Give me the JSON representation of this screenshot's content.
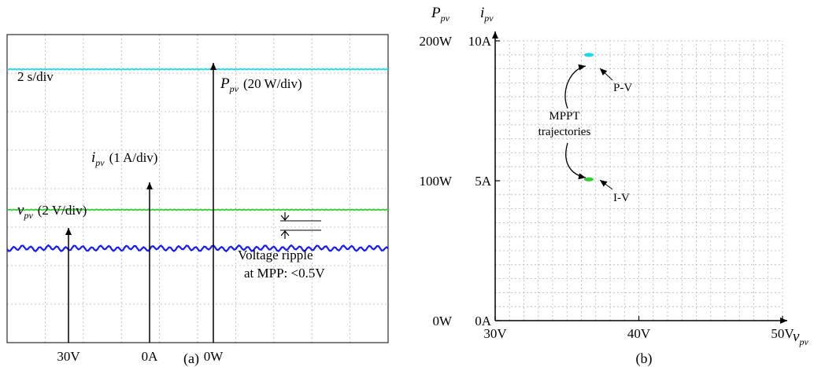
{
  "chart_data": [
    {
      "panel": "(a)",
      "type": "line",
      "time_scale": "2 s/div",
      "series": [
        {
          "name": "P_pv",
          "label_main": "P",
          "label_sub": "pv",
          "label_scale": "(20 W/div)",
          "color": "#1ed8e6",
          "level_div": 7.1,
          "reference": "0W"
        },
        {
          "name": "i_pv",
          "label_main": "i",
          "label_sub": "pv",
          "label_scale": "(1 A/div)",
          "color": "#33cc33",
          "level_div": 3.45,
          "reference": "0A"
        },
        {
          "name": "v_pv",
          "label_main": "v",
          "label_sub": "pv",
          "label_scale": "(2 V/div)",
          "color": "#1a1aff",
          "level_div": 2.45,
          "reference": "30V"
        }
      ],
      "reference_labels": [
        "30V",
        "0A",
        "0W"
      ],
      "annotation": [
        "Voltage ripple",
        "at MPP: <0.5V"
      ],
      "grid": true,
      "divisions": {
        "x": 10,
        "y": 8
      }
    },
    {
      "panel": "(b)",
      "type": "scatter",
      "x_label": {
        "main": "v",
        "sub": "pv"
      },
      "y_label_power": {
        "main": "P",
        "sub": "pv"
      },
      "y_label_current": {
        "main": "i",
        "sub": "pv"
      },
      "x_ticks": [
        "30V",
        "40V",
        "50V"
      ],
      "x_range": [
        30,
        50
      ],
      "y_ticks_power": [
        "0W",
        "100W",
        "200W"
      ],
      "y_ticks_current": [
        "0A",
        "5A",
        "10A"
      ],
      "y_range_power": [
        0,
        200
      ],
      "y_range_current": [
        0,
        10
      ],
      "points": [
        {
          "name": "P-V",
          "x": 36.3,
          "y_power": 190,
          "color": "#1ed8e6"
        },
        {
          "name": "I-V",
          "x": 36.3,
          "y_current": 5.05,
          "color": "#33cc33"
        }
      ],
      "annotation": [
        "MPPT",
        "trajectories"
      ],
      "grid": true
    }
  ]
}
